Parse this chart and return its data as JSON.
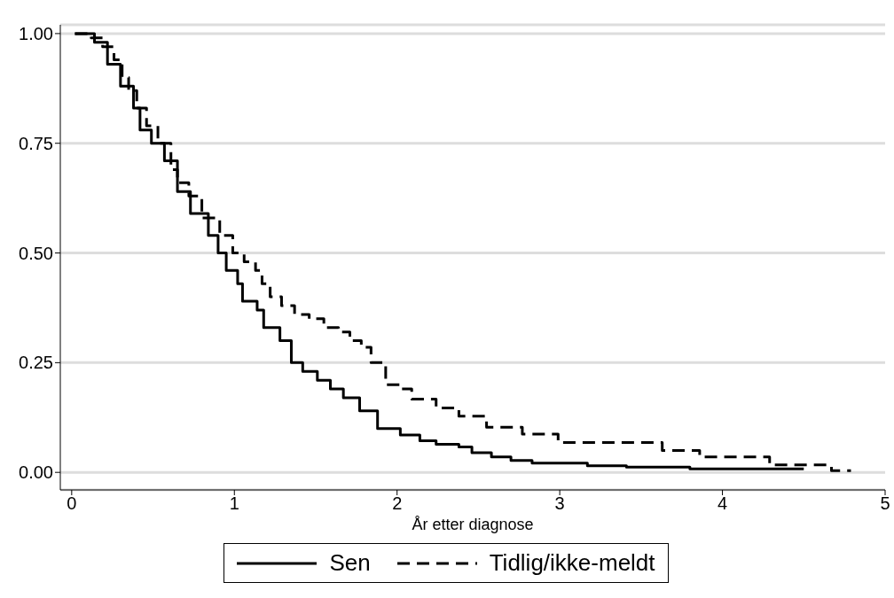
{
  "chart_data": {
    "type": "step",
    "xlabel": "År etter diagnose",
    "xlim": [
      -0.07,
      5
    ],
    "xticks": [
      0,
      1,
      2,
      3,
      4,
      5
    ],
    "ylim": [
      -0.04,
      1.02
    ],
    "yticks": [
      {
        "value": 0,
        "label": "0.00"
      },
      {
        "value": 0.25,
        "label": "0.25"
      },
      {
        "value": 0.5,
        "label": "0.50"
      },
      {
        "value": 0.75,
        "label": "0.75"
      },
      {
        "value": 1,
        "label": "1.00"
      }
    ],
    "grid": "y",
    "legend": "bottom",
    "marker": "none",
    "series": [
      {
        "name": "Sen",
        "color": "#000000",
        "line_style": "solid",
        "x": [
          0.02,
          0.14,
          0.22,
          0.3,
          0.38,
          0.42,
          0.49,
          0.57,
          0.65,
          0.73,
          0.84,
          0.9,
          0.95,
          1.02,
          1.05,
          1.14,
          1.18,
          1.28,
          1.35,
          1.42,
          1.51,
          1.59,
          1.67,
          1.77,
          1.88,
          2.02,
          2.14,
          2.24,
          2.38,
          2.46,
          2.58,
          2.7,
          2.83,
          3.17,
          3.41,
          3.8,
          4.5
        ],
        "values": [
          1.0,
          0.98,
          0.93,
          0.88,
          0.83,
          0.78,
          0.75,
          0.71,
          0.64,
          0.59,
          0.54,
          0.5,
          0.46,
          0.43,
          0.39,
          0.37,
          0.33,
          0.3,
          0.25,
          0.23,
          0.21,
          0.19,
          0.17,
          0.14,
          0.1,
          0.085,
          0.072,
          0.064,
          0.058,
          0.045,
          0.035,
          0.027,
          0.021,
          0.015,
          0.012,
          0.008,
          0.008
        ]
      },
      {
        "name": "Tidlig/ikke-meldt",
        "color": "#000000",
        "line_style": "dashed",
        "x": [
          0.02,
          0.12,
          0.19,
          0.26,
          0.31,
          0.35,
          0.4,
          0.46,
          0.53,
          0.61,
          0.65,
          0.72,
          0.8,
          0.91,
          0.99,
          1.06,
          1.13,
          1.17,
          1.22,
          1.29,
          1.37,
          1.46,
          1.55,
          1.64,
          1.71,
          1.78,
          1.84,
          1.93,
          2.02,
          2.09,
          2.24,
          2.38,
          2.55,
          2.77,
          2.99,
          3.63,
          3.86,
          4.29,
          4.67,
          4.79
        ],
        "values": [
          1.0,
          0.99,
          0.97,
          0.94,
          0.9,
          0.87,
          0.83,
          0.79,
          0.75,
          0.69,
          0.66,
          0.63,
          0.58,
          0.54,
          0.5,
          0.48,
          0.46,
          0.43,
          0.4,
          0.38,
          0.36,
          0.35,
          0.33,
          0.32,
          0.3,
          0.285,
          0.25,
          0.2,
          0.19,
          0.167,
          0.147,
          0.128,
          0.103,
          0.087,
          0.068,
          0.05,
          0.035,
          0.017,
          0.004,
          0.004
        ]
      }
    ]
  }
}
